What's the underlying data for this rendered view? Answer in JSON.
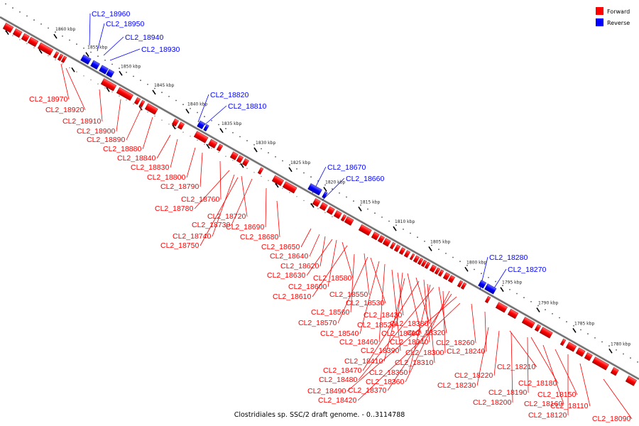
{
  "caption": "Clostridiales sp. SSC/2 draft genome. - 0..3114788",
  "legend": {
    "forward_label": "Forward",
    "reverse_label": "Reverse",
    "forward_color": "#ff0000",
    "reverse_color": "#0000ff"
  },
  "scale_labels": [
    "1860 kbp",
    "1855 kbp",
    "1850 kbp",
    "1845 kbp",
    "1840 kbp",
    "1835 kbp",
    "1830 kbp",
    "1825 kbp",
    "1820 kbp",
    "1815 kbp",
    "1810 kbp",
    "1805 kbp",
    "1800 kbp",
    "1795 kbp",
    "1790 kbp",
    "1785 kbp",
    "1780 kbp"
  ],
  "forward_labels": [
    "CL2_18970",
    "CL2_18920",
    "CL2_18910",
    "CL2_18900",
    "CL2_18890",
    "CL2_18880",
    "CL2_18840",
    "CL2_18830",
    "CL2_18800",
    "CL2_18790",
    "CL2_18760",
    "CL2_18780",
    "CL2_18720",
    "CL2_18730",
    "CL2_18740",
    "CL2_18750",
    "CL2_18690",
    "CL2_18680",
    "CL2_18650",
    "CL2_18640",
    "CL2_18620",
    "CL2_18630",
    "CL2_18580",
    "CL2_18600",
    "CL2_18610",
    "CL2_18550",
    "CL2_18530",
    "CL2_18560",
    "CL2_18430",
    "CL2_18570",
    "CL2_18520",
    "CL2_18380",
    "CL2_18540",
    "CL2_18400",
    "CL2_18320",
    "CL2_18460",
    "CL2_18340",
    "CL2_18260",
    "CL2_18390",
    "CL2_18300",
    "CL2_18240",
    "CL2_18410",
    "CL2_18310",
    "CL2_18470",
    "CL2_18350",
    "CL2_18210",
    "CL2_18220",
    "CL2_18480",
    "CL2_18360",
    "CL2_18230",
    "CL2_18490",
    "CL2_18370",
    "CL2_18420",
    "CL2_18180",
    "CL2_18190",
    "CL2_18150",
    "CL2_18200",
    "CL2_18160",
    "CL2_18110",
    "CL2_18120",
    "CL2_18090"
  ],
  "reverse_labels": [
    "CL2_18960",
    "CL2_18950",
    "CL2_18940",
    "CL2_18930",
    "CL2_18820",
    "CL2_18810",
    "CL2_18670",
    "CL2_18660",
    "CL2_18280",
    "CL2_18270"
  ]
}
